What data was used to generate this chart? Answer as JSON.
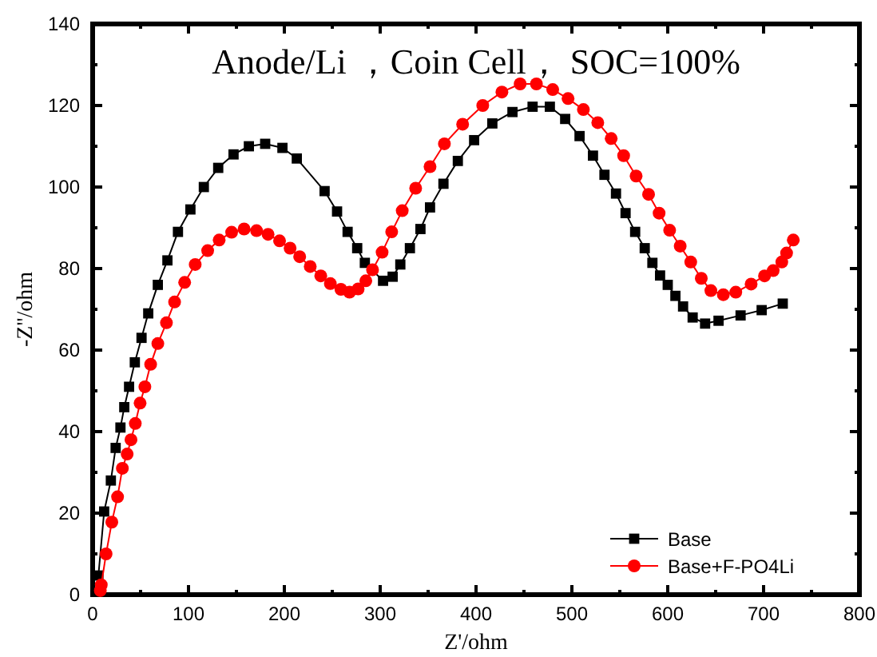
{
  "chart_data": {
    "type": "line",
    "title": "Anode/Li ，Coin Cell， SOC=100%",
    "xlabel": "Z'/ohm",
    "ylabel": "-Z''/ohm",
    "xlim": [
      0,
      800
    ],
    "ylim": [
      0,
      140
    ],
    "xticks": [
      0,
      {
        "value": 50,
        "label": null
      },
      100,
      {
        "value": 150,
        "label": null
      },
      200,
      {
        "value": 250,
        "label": null
      },
      300,
      {
        "value": 350,
        "label": null
      },
      400,
      {
        "value": 450,
        "label": null
      },
      500,
      {
        "value": 550,
        "label": null
      },
      600,
      {
        "value": 650,
        "label": null
      },
      700,
      {
        "value": 750,
        "label": null
      },
      800
    ],
    "yticks": [
      0,
      {
        "value": 10,
        "label": null
      },
      20,
      {
        "value": 30,
        "label": null
      },
      40,
      {
        "value": 50,
        "label": null
      },
      60,
      {
        "value": 70,
        "label": null
      },
      80,
      {
        "value": 90,
        "label": null
      },
      100,
      {
        "value": 110,
        "label": null
      },
      120,
      {
        "value": 130,
        "label": null
      },
      140
    ],
    "grid": false,
    "legend": "bottom right",
    "line_style": "solid",
    "series": [
      {
        "name": "Base",
        "color": "#000000",
        "marker": "square",
        "x": [
          6,
          12,
          19,
          24,
          29,
          33,
          38,
          44,
          51,
          58,
          68,
          78,
          89,
          102,
          116,
          131,
          147,
          163,
          180,
          198,
          213,
          242,
          255,
          266,
          276,
          284,
          303,
          313,
          321,
          331,
          342,
          352,
          366,
          381,
          398,
          417,
          438,
          459,
          477,
          493,
          508,
          522,
          534,
          546,
          556,
          566,
          576,
          584,
          592,
          600,
          608,
          616,
          626,
          639,
          653,
          676,
          698,
          720
        ],
        "values": [
          4.7,
          20.4,
          28,
          36,
          41,
          46,
          51,
          57,
          63,
          69,
          76,
          82,
          89,
          94.5,
          100,
          104.7,
          108,
          110,
          110.6,
          109.6,
          107,
          99,
          94,
          89,
          85,
          81.4,
          77,
          78,
          81,
          85,
          89.7,
          95,
          100.8,
          106.4,
          111.5,
          115.6,
          118.4,
          119.7,
          119.7,
          116.7,
          112.5,
          107.7,
          103,
          98.4,
          93.6,
          89,
          85,
          81.4,
          78.3,
          76,
          73.3,
          70.7,
          68,
          66.5,
          67.2,
          68.5,
          69.8,
          71.4
        ]
      },
      {
        "name": "Base+F-PO4Li",
        "color": "#ff0000",
        "marker": "circle",
        "x": [
          8,
          9,
          14,
          20,
          26,
          31,
          36,
          40,
          44.5,
          49.5,
          54.5,
          60.5,
          68,
          77,
          85.5,
          96,
          107,
          120,
          132,
          145,
          158,
          171,
          183,
          195,
          206,
          216,
          227,
          238,
          248,
          259,
          268,
          277,
          285,
          292,
          302,
          312,
          323,
          337,
          352,
          367,
          386,
          407,
          427,
          446,
          463,
          480,
          496,
          512,
          527,
          541,
          554,
          567,
          580,
          591,
          602,
          613,
          624,
          635,
          645,
          658,
          671,
          687,
          701,
          710,
          719,
          724,
          731
        ],
        "values": [
          1,
          2.4,
          10,
          17.8,
          24,
          31,
          34.5,
          38,
          42,
          47,
          51,
          56.5,
          61.6,
          66.7,
          71.8,
          76.6,
          81,
          84.4,
          87,
          88.9,
          89.7,
          89.3,
          88.4,
          86.8,
          85,
          82.9,
          80.5,
          78.2,
          76.3,
          74.9,
          74.2,
          75,
          77,
          79.7,
          84,
          89,
          94.2,
          99.7,
          105,
          110.6,
          115.4,
          120,
          123.3,
          125.3,
          125.3,
          123.9,
          121.7,
          119,
          115.8,
          111.9,
          107.7,
          102.7,
          98.2,
          93.6,
          89.4,
          85.5,
          81.6,
          77.6,
          74.6,
          73.6,
          74.2,
          76.2,
          78.2,
          79.5,
          81.6,
          83.8,
          87
        ]
      }
    ]
  }
}
